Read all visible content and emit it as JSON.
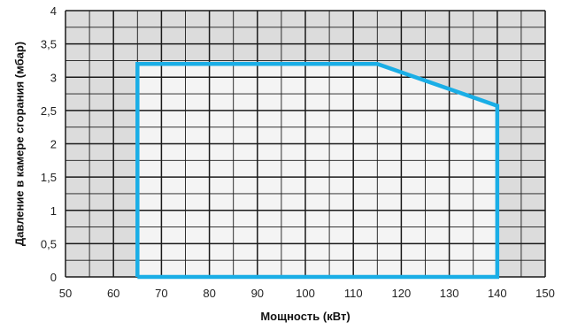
{
  "chart_data": {
    "type": "area",
    "title": "",
    "xlabel": "Мощность (кВт)",
    "ylabel": "Давление в камере сгорания (мбар)",
    "xlim": [
      50,
      150
    ],
    "ylim": [
      0,
      4
    ],
    "x_ticks": [
      50,
      60,
      70,
      80,
      90,
      100,
      110,
      120,
      130,
      140,
      150
    ],
    "y_ticks": [
      "0",
      "0,5",
      "1",
      "1,5",
      "2",
      "2,5",
      "3",
      "3,5",
      "4"
    ],
    "grid": true,
    "series": [
      {
        "points": [
          {
            "x": 65,
            "y": 0
          },
          {
            "x": 65,
            "y": 3.2
          },
          {
            "x": 115,
            "y": 3.2
          },
          {
            "x": 140,
            "y": 2.57
          },
          {
            "x": 140,
            "y": 0
          }
        ]
      }
    ]
  },
  "colors": {
    "plot_background": "#dcdcdc",
    "working_field_fill": "#f4f4f4",
    "grid_line": "#1a1a1a",
    "series_line": "#1aaee6"
  }
}
